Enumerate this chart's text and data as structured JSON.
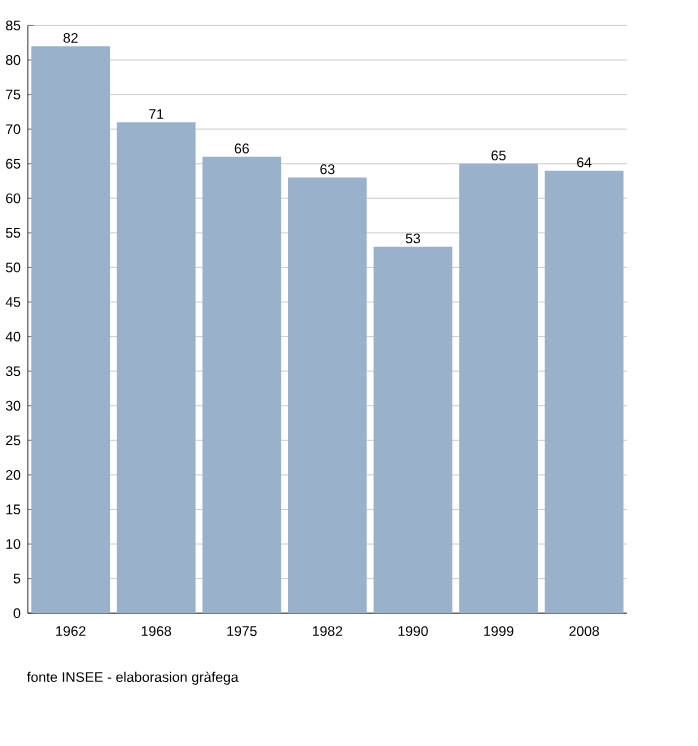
{
  "chart_data": {
    "type": "bar",
    "categories": [
      "1962",
      "1968",
      "1975",
      "1982",
      "1990",
      "1999",
      "2008"
    ],
    "values": [
      82,
      71,
      66,
      63,
      53,
      65,
      64
    ],
    "color": "#9ab1cb",
    "data_labels": true,
    "ylim": [
      0,
      85
    ],
    "yticks": [
      0,
      5,
      10,
      15,
      20,
      25,
      30,
      35,
      40,
      45,
      50,
      55,
      60,
      65,
      70,
      75,
      80,
      85
    ],
    "grid": "y",
    "annotations": [
      "fonte INSEE - elaborasion gràfega"
    ]
  }
}
